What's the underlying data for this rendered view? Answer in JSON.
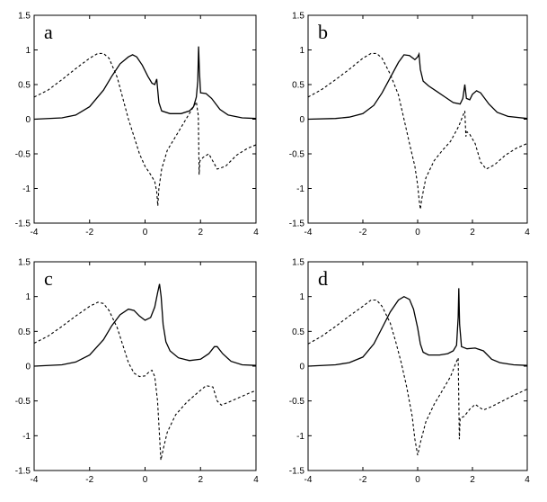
{
  "chart_data": [
    {
      "type": "line",
      "panel_label": "a",
      "xlim": [
        -4,
        4
      ],
      "ylim": [
        -1.5,
        1.5
      ],
      "xticks": [
        "-4",
        "-2",
        "0",
        "2",
        "4"
      ],
      "yticks": [
        "-1.5",
        "-1",
        "-0.5",
        "0",
        "0.5",
        "1",
        "1.5"
      ],
      "series": [
        {
          "style": "solid",
          "points": [
            [
              -4,
              0
            ],
            [
              -3,
              0.02
            ],
            [
              -2.5,
              0.06
            ],
            [
              -2,
              0.18
            ],
            [
              -1.5,
              0.42
            ],
            [
              -1.2,
              0.62
            ],
            [
              -0.9,
              0.8
            ],
            [
              -0.6,
              0.9
            ],
            [
              -0.45,
              0.93
            ],
            [
              -0.3,
              0.9
            ],
            [
              -0.1,
              0.78
            ],
            [
              0.1,
              0.62
            ],
            [
              0.25,
              0.52
            ],
            [
              0.35,
              0.5
            ],
            [
              0.42,
              0.58
            ],
            [
              0.45,
              0.45
            ],
            [
              0.5,
              0.24
            ],
            [
              0.6,
              0.12
            ],
            [
              0.9,
              0.08
            ],
            [
              1.3,
              0.08
            ],
            [
              1.6,
              0.12
            ],
            [
              1.75,
              0.18
            ],
            [
              1.85,
              0.32
            ],
            [
              1.9,
              0.55
            ],
            [
              1.93,
              1.05
            ],
            [
              1.96,
              0.7
            ],
            [
              2.0,
              0.38
            ],
            [
              2.2,
              0.37
            ],
            [
              2.4,
              0.3
            ],
            [
              2.7,
              0.14
            ],
            [
              3,
              0.06
            ],
            [
              3.5,
              0.02
            ],
            [
              4,
              0.01
            ]
          ]
        },
        {
          "style": "dashed",
          "points": [
            [
              -4,
              0.32
            ],
            [
              -3.5,
              0.42
            ],
            [
              -3,
              0.57
            ],
            [
              -2.5,
              0.73
            ],
            [
              -2,
              0.88
            ],
            [
              -1.7,
              0.95
            ],
            [
              -1.5,
              0.95
            ],
            [
              -1.3,
              0.88
            ],
            [
              -1,
              0.6
            ],
            [
              -0.8,
              0.3
            ],
            [
              -0.6,
              0.0
            ],
            [
              -0.4,
              -0.25
            ],
            [
              -0.2,
              -0.5
            ],
            [
              0,
              -0.68
            ],
            [
              0.2,
              -0.8
            ],
            [
              0.35,
              -0.9
            ],
            [
              0.42,
              -1.05
            ],
            [
              0.46,
              -1.25
            ],
            [
              0.5,
              -1.0
            ],
            [
              0.6,
              -0.72
            ],
            [
              0.8,
              -0.45
            ],
            [
              1.1,
              -0.25
            ],
            [
              1.4,
              -0.05
            ],
            [
              1.7,
              0.15
            ],
            [
              1.85,
              0.25
            ],
            [
              1.92,
              0.05
            ],
            [
              1.95,
              -0.8
            ],
            [
              1.98,
              -0.6
            ],
            [
              2.1,
              -0.55
            ],
            [
              2.3,
              -0.5
            ],
            [
              2.6,
              -0.72
            ],
            [
              2.9,
              -0.68
            ],
            [
              3.3,
              -0.52
            ],
            [
              3.7,
              -0.42
            ],
            [
              4,
              -0.37
            ]
          ]
        }
      ]
    },
    {
      "type": "line",
      "panel_label": "b",
      "xlim": [
        -4,
        4
      ],
      "ylim": [
        -1.5,
        1.5
      ],
      "xticks": [
        "-4",
        "-2",
        "0",
        "2",
        "4"
      ],
      "yticks": [
        "-1.5",
        "-1",
        "-0.5",
        "0",
        "0.5",
        "1",
        "1.5"
      ],
      "series": [
        {
          "style": "solid",
          "points": [
            [
              -4,
              0
            ],
            [
              -3,
              0.01
            ],
            [
              -2.5,
              0.03
            ],
            [
              -2,
              0.08
            ],
            [
              -1.6,
              0.2
            ],
            [
              -1.3,
              0.38
            ],
            [
              -1,
              0.6
            ],
            [
              -0.7,
              0.82
            ],
            [
              -0.5,
              0.93
            ],
            [
              -0.3,
              0.92
            ],
            [
              -0.1,
              0.86
            ],
            [
              0,
              0.9
            ],
            [
              0.05,
              0.94
            ],
            [
              0.1,
              0.72
            ],
            [
              0.2,
              0.55
            ],
            [
              0.4,
              0.48
            ],
            [
              0.7,
              0.4
            ],
            [
              1.0,
              0.32
            ],
            [
              1.3,
              0.24
            ],
            [
              1.55,
              0.22
            ],
            [
              1.65,
              0.3
            ],
            [
              1.72,
              0.5
            ],
            [
              1.78,
              0.3
            ],
            [
              1.9,
              0.28
            ],
            [
              2.0,
              0.36
            ],
            [
              2.15,
              0.41
            ],
            [
              2.3,
              0.38
            ],
            [
              2.6,
              0.22
            ],
            [
              2.9,
              0.1
            ],
            [
              3.3,
              0.04
            ],
            [
              4,
              0.01
            ]
          ]
        },
        {
          "style": "dashed",
          "points": [
            [
              -4,
              0.32
            ],
            [
              -3.5,
              0.43
            ],
            [
              -3,
              0.57
            ],
            [
              -2.5,
              0.72
            ],
            [
              -2,
              0.88
            ],
            [
              -1.7,
              0.95
            ],
            [
              -1.5,
              0.95
            ],
            [
              -1.3,
              0.88
            ],
            [
              -1,
              0.65
            ],
            [
              -0.7,
              0.35
            ],
            [
              -0.5,
              0.0
            ],
            [
              -0.3,
              -0.35
            ],
            [
              -0.1,
              -0.68
            ],
            [
              0,
              -0.95
            ],
            [
              0.05,
              -1.15
            ],
            [
              0.1,
              -1.3
            ],
            [
              0.15,
              -1.15
            ],
            [
              0.3,
              -0.85
            ],
            [
              0.6,
              -0.6
            ],
            [
              0.9,
              -0.45
            ],
            [
              1.2,
              -0.32
            ],
            [
              1.5,
              -0.1
            ],
            [
              1.65,
              0.05
            ],
            [
              1.72,
              0.12
            ],
            [
              1.76,
              -0.25
            ],
            [
              1.8,
              -0.18
            ],
            [
              1.9,
              -0.22
            ],
            [
              2.1,
              -0.35
            ],
            [
              2.3,
              -0.62
            ],
            [
              2.5,
              -0.72
            ],
            [
              2.8,
              -0.66
            ],
            [
              3.2,
              -0.52
            ],
            [
              3.6,
              -0.42
            ],
            [
              4,
              -0.35
            ]
          ]
        }
      ]
    },
    {
      "type": "line",
      "panel_label": "c",
      "xlim": [
        -4,
        4
      ],
      "ylim": [
        -1.5,
        1.5
      ],
      "xticks": [
        "-4",
        "-2",
        "0",
        "2",
        "4"
      ],
      "yticks": [
        "-1.5",
        "-1",
        "-0.5",
        "0",
        "0.5",
        "1",
        "1.5"
      ],
      "series": [
        {
          "style": "solid",
          "points": [
            [
              -4,
              0
            ],
            [
              -3,
              0.02
            ],
            [
              -2.5,
              0.06
            ],
            [
              -2,
              0.16
            ],
            [
              -1.5,
              0.38
            ],
            [
              -1.2,
              0.58
            ],
            [
              -0.9,
              0.74
            ],
            [
              -0.6,
              0.82
            ],
            [
              -0.4,
              0.8
            ],
            [
              -0.2,
              0.72
            ],
            [
              0,
              0.66
            ],
            [
              0.2,
              0.7
            ],
            [
              0.35,
              0.85
            ],
            [
              0.45,
              1.05
            ],
            [
              0.52,
              1.18
            ],
            [
              0.58,
              1.0
            ],
            [
              0.65,
              0.6
            ],
            [
              0.75,
              0.35
            ],
            [
              0.9,
              0.22
            ],
            [
              1.2,
              0.12
            ],
            [
              1.6,
              0.08
            ],
            [
              2,
              0.1
            ],
            [
              2.3,
              0.18
            ],
            [
              2.5,
              0.28
            ],
            [
              2.6,
              0.28
            ],
            [
              2.8,
              0.18
            ],
            [
              3.1,
              0.07
            ],
            [
              3.5,
              0.02
            ],
            [
              4,
              0.01
            ]
          ]
        },
        {
          "style": "dashed",
          "points": [
            [
              -4,
              0.33
            ],
            [
              -3.5,
              0.43
            ],
            [
              -3,
              0.57
            ],
            [
              -2.5,
              0.72
            ],
            [
              -2,
              0.86
            ],
            [
              -1.7,
              0.92
            ],
            [
              -1.5,
              0.9
            ],
            [
              -1.3,
              0.8
            ],
            [
              -1,
              0.55
            ],
            [
              -0.8,
              0.3
            ],
            [
              -0.6,
              0.05
            ],
            [
              -0.4,
              -0.1
            ],
            [
              -0.2,
              -0.15
            ],
            [
              0,
              -0.14
            ],
            [
              0.15,
              -0.08
            ],
            [
              0.25,
              -0.06
            ],
            [
              0.35,
              -0.15
            ],
            [
              0.45,
              -0.5
            ],
            [
              0.52,
              -1.0
            ],
            [
              0.57,
              -1.35
            ],
            [
              0.65,
              -1.2
            ],
            [
              0.8,
              -0.95
            ],
            [
              1.1,
              -0.7
            ],
            [
              1.5,
              -0.52
            ],
            [
              1.9,
              -0.38
            ],
            [
              2.2,
              -0.28
            ],
            [
              2.45,
              -0.3
            ],
            [
              2.6,
              -0.5
            ],
            [
              2.75,
              -0.56
            ],
            [
              3,
              -0.52
            ],
            [
              3.4,
              -0.45
            ],
            [
              3.8,
              -0.38
            ],
            [
              4,
              -0.35
            ]
          ]
        }
      ]
    },
    {
      "type": "line",
      "panel_label": "d",
      "xlim": [
        -4,
        4
      ],
      "ylim": [
        -1.5,
        1.5
      ],
      "xticks": [
        "-4",
        "-2",
        "0",
        "2",
        "4"
      ],
      "yticks": [
        "-1.5",
        "-1",
        "-0.5",
        "0",
        "0.5",
        "1",
        "1.5"
      ],
      "series": [
        {
          "style": "solid",
          "points": [
            [
              -4,
              0
            ],
            [
              -3,
              0.02
            ],
            [
              -2.5,
              0.05
            ],
            [
              -2,
              0.13
            ],
            [
              -1.6,
              0.32
            ],
            [
              -1.3,
              0.55
            ],
            [
              -1,
              0.78
            ],
            [
              -0.7,
              0.95
            ],
            [
              -0.5,
              1.0
            ],
            [
              -0.3,
              0.96
            ],
            [
              -0.15,
              0.82
            ],
            [
              0,
              0.55
            ],
            [
              0.1,
              0.32
            ],
            [
              0.2,
              0.2
            ],
            [
              0.4,
              0.16
            ],
            [
              0.8,
              0.16
            ],
            [
              1.1,
              0.18
            ],
            [
              1.3,
              0.22
            ],
            [
              1.42,
              0.3
            ],
            [
              1.48,
              0.7
            ],
            [
              1.5,
              1.12
            ],
            [
              1.53,
              0.6
            ],
            [
              1.6,
              0.28
            ],
            [
              1.8,
              0.25
            ],
            [
              2.1,
              0.26
            ],
            [
              2.4,
              0.22
            ],
            [
              2.7,
              0.1
            ],
            [
              3,
              0.05
            ],
            [
              3.5,
              0.02
            ],
            [
              4,
              0.01
            ]
          ]
        },
        {
          "style": "dashed",
          "points": [
            [
              -4,
              0.32
            ],
            [
              -3.5,
              0.43
            ],
            [
              -3,
              0.57
            ],
            [
              -2.5,
              0.72
            ],
            [
              -2,
              0.86
            ],
            [
              -1.7,
              0.95
            ],
            [
              -1.5,
              0.95
            ],
            [
              -1.3,
              0.86
            ],
            [
              -1,
              0.62
            ],
            [
              -0.8,
              0.35
            ],
            [
              -0.6,
              0.05
            ],
            [
              -0.4,
              -0.3
            ],
            [
              -0.2,
              -0.72
            ],
            [
              -0.1,
              -1.05
            ],
            [
              0,
              -1.28
            ],
            [
              0.1,
              -1.1
            ],
            [
              0.3,
              -0.8
            ],
            [
              0.6,
              -0.55
            ],
            [
              0.9,
              -0.35
            ],
            [
              1.2,
              -0.15
            ],
            [
              1.4,
              0.05
            ],
            [
              1.48,
              0.12
            ],
            [
              1.5,
              -0.5
            ],
            [
              1.52,
              -1.05
            ],
            [
              1.55,
              -0.75
            ],
            [
              1.7,
              -0.72
            ],
            [
              1.9,
              -0.62
            ],
            [
              2.1,
              -0.55
            ],
            [
              2.4,
              -0.63
            ],
            [
              2.7,
              -0.58
            ],
            [
              3.1,
              -0.5
            ],
            [
              3.5,
              -0.42
            ],
            [
              4,
              -0.33
            ]
          ]
        }
      ]
    }
  ]
}
